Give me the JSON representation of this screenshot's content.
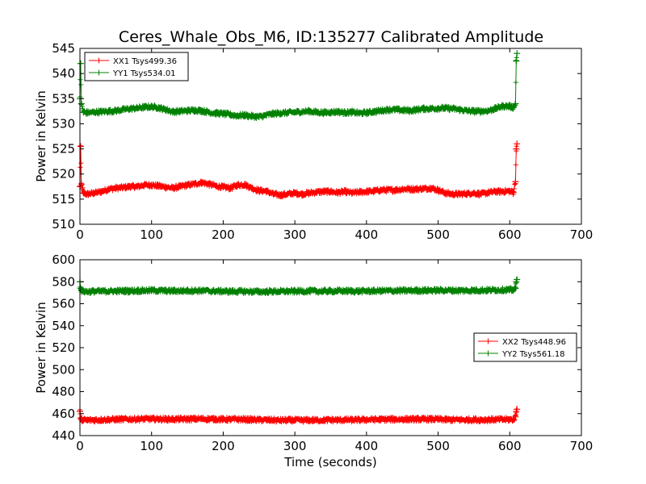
{
  "title": "Ceres_Whale_Obs_M6, ID:135277 Calibrated Amplitude",
  "colors": {
    "xx": "#ff0000",
    "yy": "#008000",
    "axes": "#000000"
  },
  "chart_data": [
    {
      "type": "line",
      "title": "Ceres_Whale_Obs_M6, ID:135277 Calibrated Amplitude",
      "xlabel": "",
      "ylabel": "Power in Kelvin",
      "xlim": [
        0,
        700
      ],
      "ylim": [
        510,
        545
      ],
      "xticks": [
        0,
        100,
        200,
        300,
        400,
        500,
        600,
        700
      ],
      "yticks": [
        510,
        515,
        520,
        525,
        530,
        535,
        540,
        545
      ],
      "grid": false,
      "legend_position": "upper-left",
      "marker": "+",
      "series": [
        {
          "name": "XX1 Tsys499.36",
          "color": "#ff0000",
          "x": [
            0,
            1,
            2,
            5,
            10,
            20,
            30,
            40,
            50,
            60,
            70,
            80,
            90,
            100,
            110,
            120,
            130,
            140,
            150,
            160,
            170,
            180,
            190,
            200,
            210,
            220,
            230,
            240,
            250,
            260,
            270,
            280,
            290,
            300,
            310,
            320,
            330,
            340,
            350,
            360,
            370,
            380,
            390,
            400,
            410,
            420,
            430,
            440,
            450,
            460,
            470,
            480,
            490,
            500,
            510,
            520,
            530,
            540,
            550,
            560,
            570,
            580,
            590,
            600,
            605,
            608,
            609,
            610
          ],
          "y": [
            517.5,
            525.5,
            518.0,
            516.2,
            516.0,
            516.2,
            516.5,
            517.0,
            517.2,
            517.3,
            517.5,
            517.5,
            517.8,
            517.8,
            517.6,
            517.4,
            517.2,
            517.5,
            517.8,
            518.0,
            518.3,
            518.0,
            517.6,
            517.4,
            517.2,
            517.8,
            517.9,
            517.2,
            516.7,
            516.6,
            516.0,
            515.8,
            516.0,
            516.2,
            516.0,
            516.2,
            516.4,
            516.5,
            516.5,
            516.3,
            516.5,
            516.2,
            516.4,
            516.5,
            516.6,
            516.8,
            516.8,
            516.8,
            517.0,
            517.0,
            517.0,
            517.1,
            517.2,
            516.8,
            516.2,
            516.0,
            516.0,
            516.1,
            516.2,
            516.0,
            516.3,
            516.5,
            516.5,
            516.6,
            516.3,
            518.5,
            525.0,
            526.0
          ]
        },
        {
          "name": "YY1 Tsys534.01",
          "color": "#008000",
          "x": [
            0,
            1,
            2,
            5,
            10,
            20,
            30,
            40,
            50,
            60,
            70,
            80,
            90,
            100,
            110,
            120,
            130,
            140,
            150,
            160,
            170,
            180,
            190,
            200,
            210,
            220,
            230,
            240,
            250,
            260,
            270,
            280,
            290,
            300,
            310,
            320,
            330,
            340,
            350,
            360,
            370,
            380,
            390,
            400,
            410,
            420,
            430,
            440,
            450,
            460,
            470,
            480,
            490,
            500,
            510,
            520,
            530,
            540,
            550,
            560,
            570,
            580,
            590,
            600,
            605,
            608,
            609,
            610
          ],
          "y": [
            535.0,
            542.0,
            534.0,
            532.3,
            532.2,
            532.3,
            532.4,
            532.5,
            532.6,
            532.8,
            533.0,
            533.1,
            533.3,
            533.4,
            533.2,
            532.8,
            532.4,
            532.5,
            532.6,
            532.7,
            532.6,
            532.3,
            532.1,
            532.0,
            531.8,
            531.6,
            531.7,
            531.5,
            531.4,
            531.7,
            532.0,
            532.1,
            532.2,
            532.3,
            532.4,
            532.5,
            532.3,
            532.2,
            532.3,
            532.4,
            532.2,
            532.3,
            532.1,
            532.2,
            532.4,
            532.6,
            532.8,
            532.8,
            532.7,
            532.6,
            532.8,
            533.0,
            533.0,
            533.1,
            533.1,
            533.0,
            532.8,
            532.6,
            532.5,
            532.5,
            532.6,
            533.0,
            533.5,
            533.5,
            533.2,
            534.0,
            542.5,
            544.0
          ]
        }
      ]
    },
    {
      "type": "line",
      "title": "",
      "xlabel": "Time (seconds)",
      "ylabel": "Power in Kelvin",
      "xlim": [
        0,
        700
      ],
      "ylim": [
        440,
        600
      ],
      "xticks": [
        0,
        100,
        200,
        300,
        400,
        500,
        600,
        700
      ],
      "yticks": [
        440,
        460,
        480,
        500,
        520,
        540,
        560,
        580,
        600
      ],
      "grid": false,
      "legend_position": "center-right",
      "marker": "+",
      "series": [
        {
          "name": "XX2 Tsys448.96",
          "color": "#ff0000",
          "x": [
            0,
            1,
            2,
            5,
            10,
            20,
            30,
            40,
            50,
            60,
            70,
            80,
            90,
            100,
            110,
            120,
            130,
            140,
            150,
            160,
            170,
            180,
            190,
            200,
            210,
            220,
            230,
            240,
            250,
            260,
            270,
            280,
            290,
            300,
            310,
            320,
            330,
            340,
            350,
            360,
            370,
            380,
            390,
            400,
            410,
            420,
            430,
            440,
            450,
            460,
            470,
            480,
            490,
            500,
            510,
            520,
            530,
            540,
            550,
            560,
            570,
            580,
            590,
            600,
            605,
            608,
            609,
            610
          ],
          "y": [
            462.0,
            456.0,
            454.5,
            454.2,
            454.0,
            454.2,
            454.4,
            454.6,
            454.7,
            454.8,
            455.0,
            455.0,
            455.2,
            455.2,
            455.0,
            455.0,
            454.9,
            455.0,
            455.0,
            455.1,
            455.3,
            455.1,
            455.0,
            454.8,
            454.7,
            454.8,
            454.7,
            454.5,
            454.3,
            454.2,
            454.0,
            453.9,
            454.0,
            454.0,
            453.9,
            454.0,
            454.0,
            454.1,
            454.2,
            454.2,
            454.3,
            454.2,
            454.3,
            454.5,
            454.6,
            454.7,
            454.8,
            454.8,
            454.8,
            454.8,
            454.9,
            455.0,
            455.0,
            454.8,
            454.5,
            454.4,
            454.3,
            454.4,
            454.5,
            454.4,
            454.5,
            454.6,
            454.6,
            454.7,
            454.5,
            457.0,
            462.0,
            464.0
          ]
        },
        {
          "name": "YY2 Tsys561.18",
          "color": "#008000",
          "x": [
            0,
            1,
            2,
            5,
            10,
            20,
            30,
            40,
            50,
            60,
            70,
            80,
            90,
            100,
            110,
            120,
            130,
            140,
            150,
            160,
            170,
            180,
            190,
            200,
            210,
            220,
            230,
            240,
            250,
            260,
            270,
            280,
            290,
            300,
            310,
            320,
            330,
            340,
            350,
            360,
            370,
            380,
            390,
            400,
            410,
            420,
            430,
            440,
            450,
            460,
            470,
            480,
            490,
            500,
            510,
            520,
            530,
            540,
            550,
            560,
            570,
            580,
            590,
            600,
            605,
            608,
            609,
            610
          ],
          "y": [
            580.0,
            574.0,
            572.0,
            571.3,
            571.0,
            571.2,
            571.3,
            571.4,
            571.5,
            571.6,
            571.7,
            571.8,
            572.0,
            572.1,
            571.9,
            571.7,
            571.6,
            571.7,
            571.8,
            571.9,
            571.8,
            571.6,
            571.4,
            571.3,
            571.2,
            571.1,
            571.2,
            571.0,
            570.9,
            571.0,
            571.1,
            571.2,
            571.3,
            571.3,
            571.4,
            571.5,
            571.4,
            571.4,
            571.5,
            571.6,
            571.5,
            571.5,
            571.4,
            571.5,
            571.6,
            571.7,
            571.8,
            571.8,
            571.8,
            571.9,
            572.0,
            572.0,
            572.1,
            572.2,
            572.2,
            572.1,
            572.0,
            572.0,
            572.1,
            572.2,
            572.3,
            572.5,
            572.6,
            572.6,
            572.5,
            574.0,
            580.0,
            582.0
          ]
        }
      ]
    }
  ]
}
